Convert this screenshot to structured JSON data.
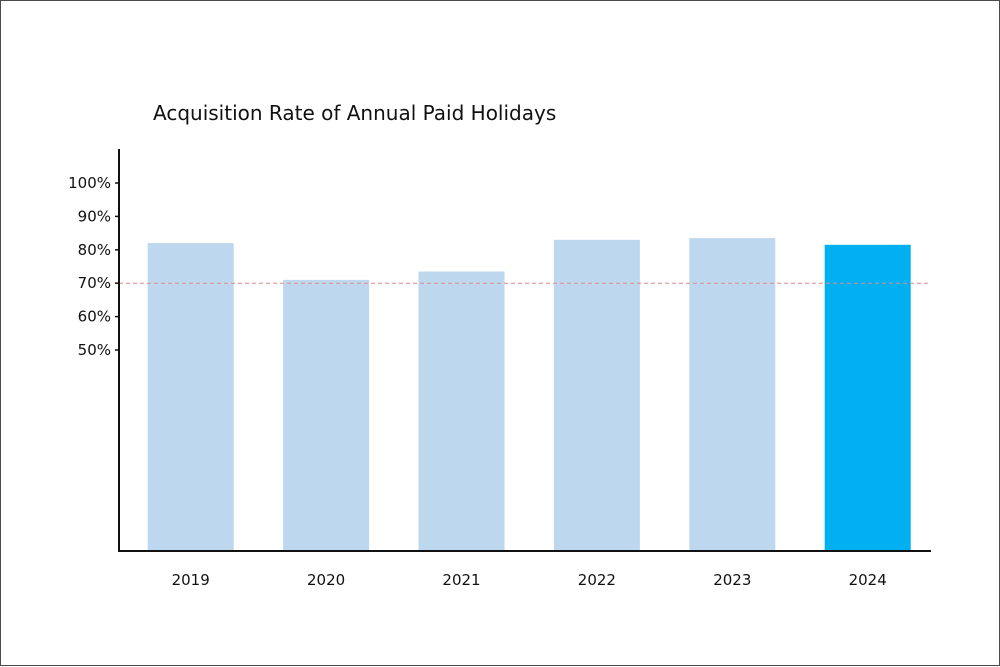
{
  "chart_data": {
    "type": "bar",
    "title": "Acquisition Rate of Annual Paid Holidays",
    "categories": [
      "2019",
      "2020",
      "2021",
      "2022",
      "2023",
      "2024"
    ],
    "values": [
      82,
      71,
      73.5,
      83,
      83.5,
      81.5
    ],
    "y_ticks": [
      {
        "value": 100,
        "label": "100%"
      },
      {
        "value": 90,
        "label": "90%"
      },
      {
        "value": 80,
        "label": "80%"
      },
      {
        "value": 70,
        "label": "70%"
      },
      {
        "value": 60,
        "label": "60%"
      },
      {
        "value": 50,
        "label": "50%"
      }
    ],
    "reference_line": {
      "value": 70,
      "style": "dashed",
      "color": "#e08a8a"
    },
    "highlight_category": "2024",
    "colors": {
      "bar": "#bdd7ee",
      "highlight_bar": "#00b0f0",
      "axis": "#111111"
    },
    "xlabel": "",
    "ylabel": "",
    "grid": false,
    "legend": "none"
  }
}
